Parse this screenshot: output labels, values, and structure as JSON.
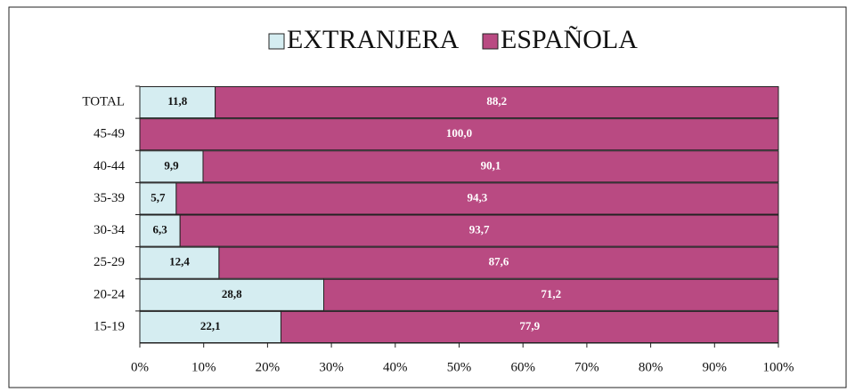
{
  "chart_data": {
    "type": "stacked_barh",
    "categories": [
      "TOTAL",
      "45-49",
      "40-44",
      "35-39",
      "30-34",
      "25-29",
      "20-24",
      "15-19"
    ],
    "series": [
      {
        "name": "EXTRANJERA",
        "color": "#d5edf1",
        "label_color": "#111111",
        "values": [
          11.8,
          0,
          9.9,
          5.7,
          6.3,
          12.4,
          28.8,
          22.1
        ],
        "value_labels": [
          "11,8",
          null,
          "9,9",
          "5,7",
          "6,3",
          "12,4",
          "28,8",
          "22,1"
        ]
      },
      {
        "name": "ESPAÑOLA",
        "color": "#b94a82",
        "label_color": "#ffffff",
        "values": [
          88.2,
          100.0,
          90.1,
          94.3,
          93.7,
          87.6,
          71.2,
          77.9
        ],
        "value_labels": [
          "88,2",
          "100,0",
          "90,1",
          "94,3",
          "93,7",
          "87,6",
          "71,2",
          "77,9"
        ]
      }
    ],
    "xlim": [
      0,
      100
    ],
    "xticks": [
      {
        "value": 0,
        "label": "0%"
      },
      {
        "value": 10,
        "label": "10%"
      },
      {
        "value": 20,
        "label": "20%"
      },
      {
        "value": 30,
        "label": "30%"
      },
      {
        "value": 40,
        "label": "40%"
      },
      {
        "value": 50,
        "label": "50%"
      },
      {
        "value": 60,
        "label": "60%"
      },
      {
        "value": 70,
        "label": "70%"
      },
      {
        "value": 80,
        "label": "80%"
      },
      {
        "value": 90,
        "label": "90%"
      },
      {
        "value": 100,
        "label": "100%"
      }
    ],
    "legend": "top"
  }
}
